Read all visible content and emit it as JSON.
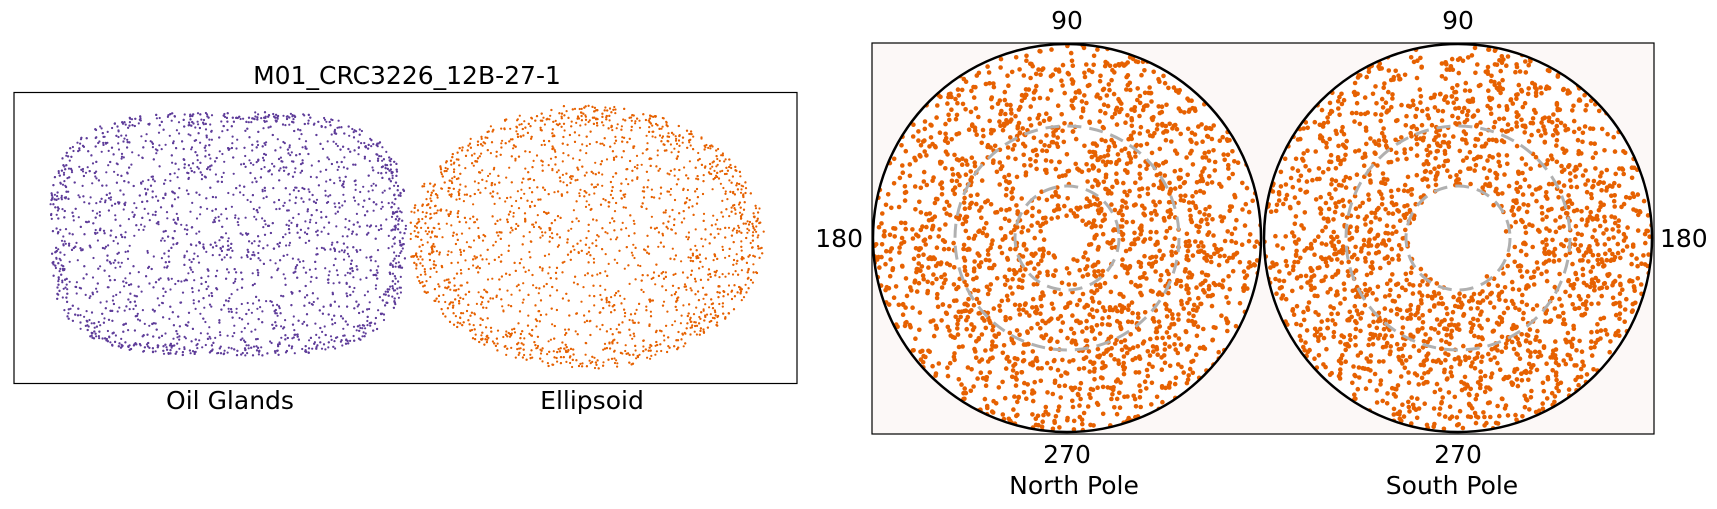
{
  "figure": {
    "left_panel": {
      "title": "M01_CRC3226_12B-27-1",
      "labels": [
        "Oil Glands",
        "Ellipsoid"
      ]
    },
    "right_panel": {
      "tick_top_left": "90",
      "tick_top_right": "90",
      "tick_left": "180",
      "tick_right": "180",
      "tick_bottom_left": "270",
      "tick_bottom_right": "270",
      "labels": [
        "North Pole",
        "South Pole"
      ]
    }
  },
  "colors": {
    "oil_glands": "#5e3c99",
    "ellipsoid": "#e66101",
    "ring": "#b0b0b0",
    "panel_bg": "#fcf8f7"
  },
  "chart_data": [
    {
      "type": "scatter",
      "title": "M01_CRC3226_12B-27-1",
      "xlabel": "",
      "ylabel": "",
      "grid": false,
      "series": [
        {
          "name": "Oil Glands",
          "shape": "rounded-box point cloud",
          "color": "#5e3c99",
          "approx_points": 9000
        },
        {
          "name": "Ellipsoid",
          "shape": "ellipse point cloud",
          "color": "#e66101",
          "approx_points": 9000
        }
      ]
    },
    {
      "type": "scatter",
      "projection": "polar stereographic",
      "ticks_deg": [
        90,
        180,
        270
      ],
      "rings_deg": [
        30,
        60
      ],
      "series": [
        {
          "name": "North Pole",
          "color": "#e66101",
          "approx_points": 4500
        },
        {
          "name": "South Pole",
          "color": "#e66101",
          "approx_points": 4500
        }
      ]
    }
  ]
}
